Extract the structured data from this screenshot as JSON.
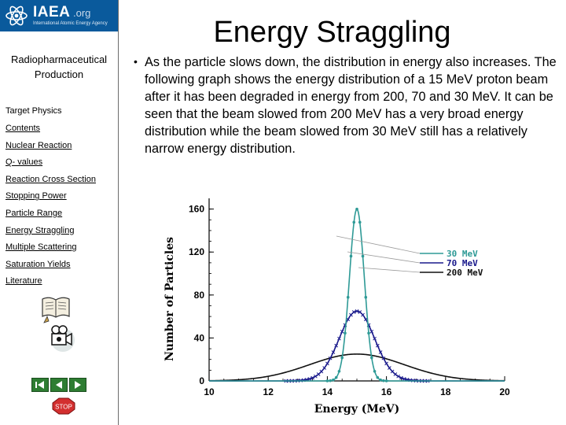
{
  "logo": {
    "name": "IAEA",
    "suffix": ".org",
    "subtitle": "International Atomic Energy Agency"
  },
  "sidebar": {
    "title": "Radiopharmaceutical Production",
    "section": "Target Physics",
    "items": [
      {
        "label": "Contents"
      },
      {
        "label": "Nuclear Reaction"
      },
      {
        "label": "Q- values"
      },
      {
        "label": "Reaction Cross Section"
      },
      {
        "label": "Stopping Power"
      },
      {
        "label": "Particle Range"
      },
      {
        "label": "Energy Straggling"
      },
      {
        "label": "Multiple Scattering"
      },
      {
        "label": "Saturation Yields"
      },
      {
        "label": "Literature"
      }
    ],
    "stop_label": "STOP"
  },
  "slide": {
    "title": "Energy Straggling",
    "bullet": "•",
    "paragraph": "As the particle slows down, the distribution in energy also increases. The following graph shows the energy distribution of a 15 MeV proton beam after it has been degraded in energy from 200, 70 and 30 MeV. It can be seen that the beam slowed from 200 MeV has a very broad energy distribution while the beam slowed from 30 MeV still has a relatively narrow energy distribution."
  },
  "chart_data": {
    "type": "line",
    "xlabel": "Energy (MeV)",
    "ylabel": "Number of Particles",
    "xlim": [
      10,
      20
    ],
    "ylim": [
      0,
      170
    ],
    "xticks": [
      10,
      12,
      14,
      16,
      18,
      20
    ],
    "yticks": [
      0,
      40,
      80,
      120,
      160
    ],
    "legend_position": "top-right",
    "series": [
      {
        "name": "30 MeV",
        "color": "#2e9a96",
        "marker": "dot",
        "peak_x": 15.0,
        "peak_y": 160,
        "sigma": 0.25
      },
      {
        "name": "70 MeV",
        "color": "#1a1a8c",
        "marker": "cross",
        "peak_x": 15.0,
        "peak_y": 65,
        "sigma": 0.6
      },
      {
        "name": "200 MeV",
        "color": "#111111",
        "marker": "none",
        "peak_x": 15.0,
        "peak_y": 25,
        "sigma": 1.6
      }
    ]
  }
}
